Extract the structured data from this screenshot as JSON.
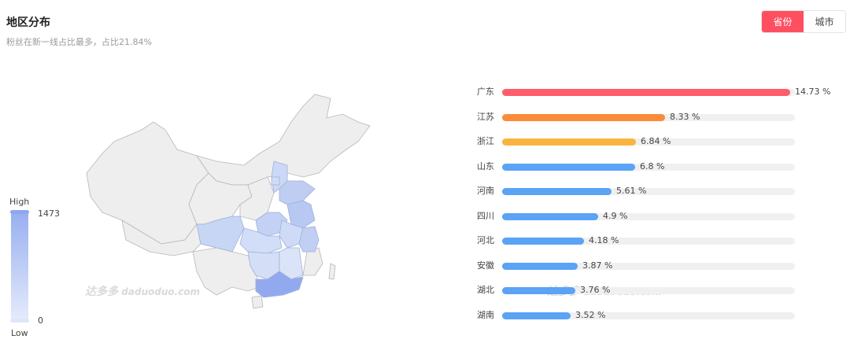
{
  "header": {
    "title": "地区分布",
    "subtitle": "粉丝在新一线占比最多，占比21.84%"
  },
  "toggle": {
    "province_label": "省份",
    "city_label": "城市",
    "active_color": "#fe4f61"
  },
  "legend": {
    "high_label": "High",
    "low_label": "Low",
    "max_value": "1473",
    "min_value": "0"
  },
  "watermark": {
    "logo_text": "达多多",
    "domain": "daduoduo.com"
  },
  "ranking": [
    {
      "province": "广东",
      "percent": 14.73,
      "label": "14.73 %",
      "color": "#fe5d6b"
    },
    {
      "province": "江苏",
      "percent": 8.33,
      "label": "8.33 %",
      "color": "#fb8c3a"
    },
    {
      "province": "浙江",
      "percent": 6.84,
      "label": "6.84 %",
      "color": "#f9b440"
    },
    {
      "province": "山东",
      "percent": 6.8,
      "label": "6.8 %",
      "color": "#5aa3f5"
    },
    {
      "province": "河南",
      "percent": 5.61,
      "label": "5.61 %",
      "color": "#5aa3f5"
    },
    {
      "province": "四川",
      "percent": 4.9,
      "label": "4.9 %",
      "color": "#5aa3f5"
    },
    {
      "province": "河北",
      "percent": 4.18,
      "label": "4.18 %",
      "color": "#5aa3f5"
    },
    {
      "province": "安徽",
      "percent": 3.87,
      "label": "3.87 %",
      "color": "#5aa3f5"
    },
    {
      "province": "湖北",
      "percent": 3.76,
      "label": "3.76 %",
      "color": "#5aa3f5"
    },
    {
      "province": "湖南",
      "percent": 3.52,
      "label": "3.52 %",
      "color": "#5aa3f5"
    }
  ],
  "ranking_scale_max": 14.73
}
